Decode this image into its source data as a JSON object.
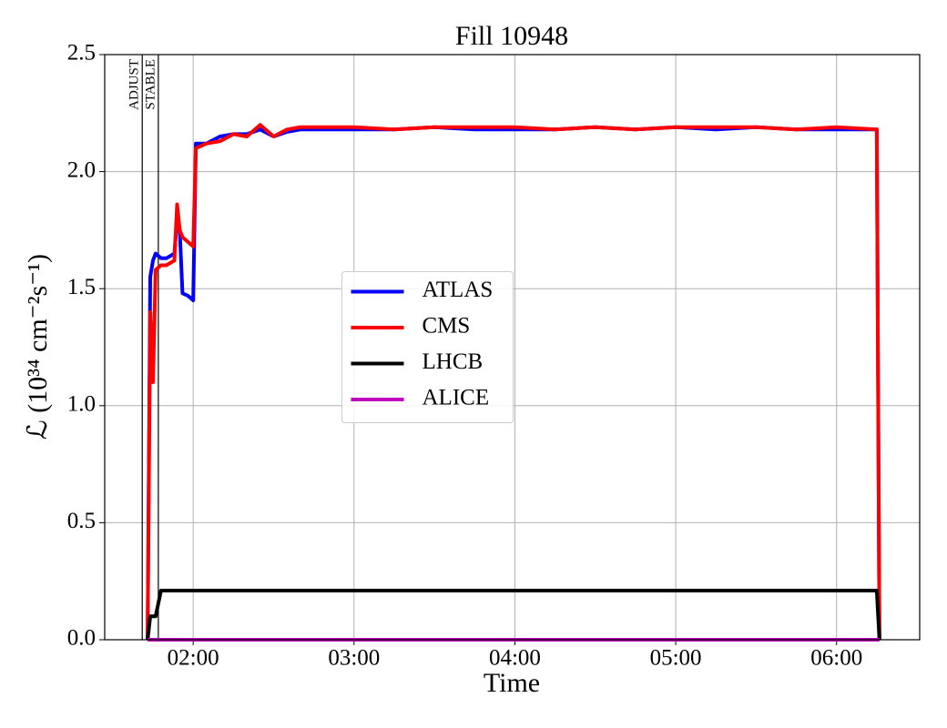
{
  "chart_data": {
    "type": "line",
    "title": "Fill 10948",
    "xlabel": "Time",
    "ylabel": "ℒ (10³⁴ cm⁻²s⁻¹)",
    "x": [
      "01:43",
      "01:44",
      "01:45",
      "01:46",
      "01:48",
      "01:50",
      "01:53",
      "01:54",
      "01:55",
      "01:56",
      "01:58",
      "02:00",
      "02:01",
      "02:05",
      "02:10",
      "02:15",
      "02:20",
      "02:25",
      "02:30",
      "02:35",
      "02:40",
      "02:50",
      "03:00",
      "03:15",
      "03:30",
      "03:45",
      "04:00",
      "04:15",
      "04:30",
      "04:45",
      "05:00",
      "05:15",
      "05:30",
      "05:45",
      "06:00",
      "06:15",
      "06:16"
    ],
    "series": [
      {
        "name": "ATLAS",
        "color": "#0000ff",
        "values": [
          0.0,
          1.55,
          1.62,
          1.65,
          1.63,
          1.63,
          1.65,
          1.8,
          1.75,
          1.48,
          1.47,
          1.45,
          2.12,
          2.12,
          2.15,
          2.16,
          2.16,
          2.18,
          2.15,
          2.17,
          2.18,
          2.18,
          2.18,
          2.18,
          2.19,
          2.18,
          2.18,
          2.18,
          2.19,
          2.18,
          2.19,
          2.18,
          2.19,
          2.18,
          2.18,
          2.18,
          0.0
        ]
      },
      {
        "name": "CMS",
        "color": "#ff0000",
        "values": [
          0.0,
          1.4,
          1.1,
          1.58,
          1.6,
          1.6,
          1.62,
          1.86,
          1.75,
          1.72,
          1.7,
          1.68,
          2.1,
          2.12,
          2.13,
          2.16,
          2.15,
          2.2,
          2.15,
          2.18,
          2.19,
          2.19,
          2.19,
          2.18,
          2.19,
          2.19,
          2.19,
          2.18,
          2.19,
          2.18,
          2.19,
          2.19,
          2.19,
          2.18,
          2.19,
          2.18,
          0.0
        ]
      },
      {
        "name": "LHCB",
        "color": "#000000",
        "values": [
          0.0,
          0.1,
          0.1,
          0.1,
          0.21,
          0.21,
          0.21,
          0.21,
          0.21,
          0.21,
          0.21,
          0.21,
          0.21,
          0.21,
          0.21,
          0.21,
          0.21,
          0.21,
          0.21,
          0.21,
          0.21,
          0.21,
          0.21,
          0.21,
          0.21,
          0.21,
          0.21,
          0.21,
          0.21,
          0.21,
          0.21,
          0.21,
          0.21,
          0.21,
          0.21,
          0.21,
          0.0
        ]
      },
      {
        "name": "ALICE",
        "color": "#bf00bf",
        "values": [
          0,
          0,
          0,
          0,
          0,
          0,
          0,
          0,
          0,
          0,
          0,
          0,
          0,
          0,
          0,
          0,
          0,
          0,
          0,
          0,
          0,
          0,
          0,
          0,
          0,
          0,
          0,
          0,
          0,
          0,
          0,
          0,
          0,
          0,
          0,
          0,
          0
        ]
      }
    ],
    "annotations": [
      {
        "x": "01:41",
        "label": "ADJUST"
      },
      {
        "x": "01:47",
        "label": "STABLE"
      }
    ],
    "xlim": [
      "01:27",
      "06:31"
    ],
    "xticks": [
      "02:00",
      "03:00",
      "04:00",
      "05:00",
      "06:00"
    ],
    "ylim": [
      0,
      2.5
    ],
    "yticks": [
      {
        "value": 0,
        "label": "0.0"
      },
      {
        "value": 0.5,
        "label": "0.5"
      },
      {
        "value": 1,
        "label": "1.0"
      },
      {
        "value": 1.5,
        "label": "1.5"
      },
      {
        "value": 2,
        "label": "2.0"
      },
      {
        "value": 2.5,
        "label": "2.5"
      }
    ],
    "grid": true,
    "legend": "center"
  }
}
